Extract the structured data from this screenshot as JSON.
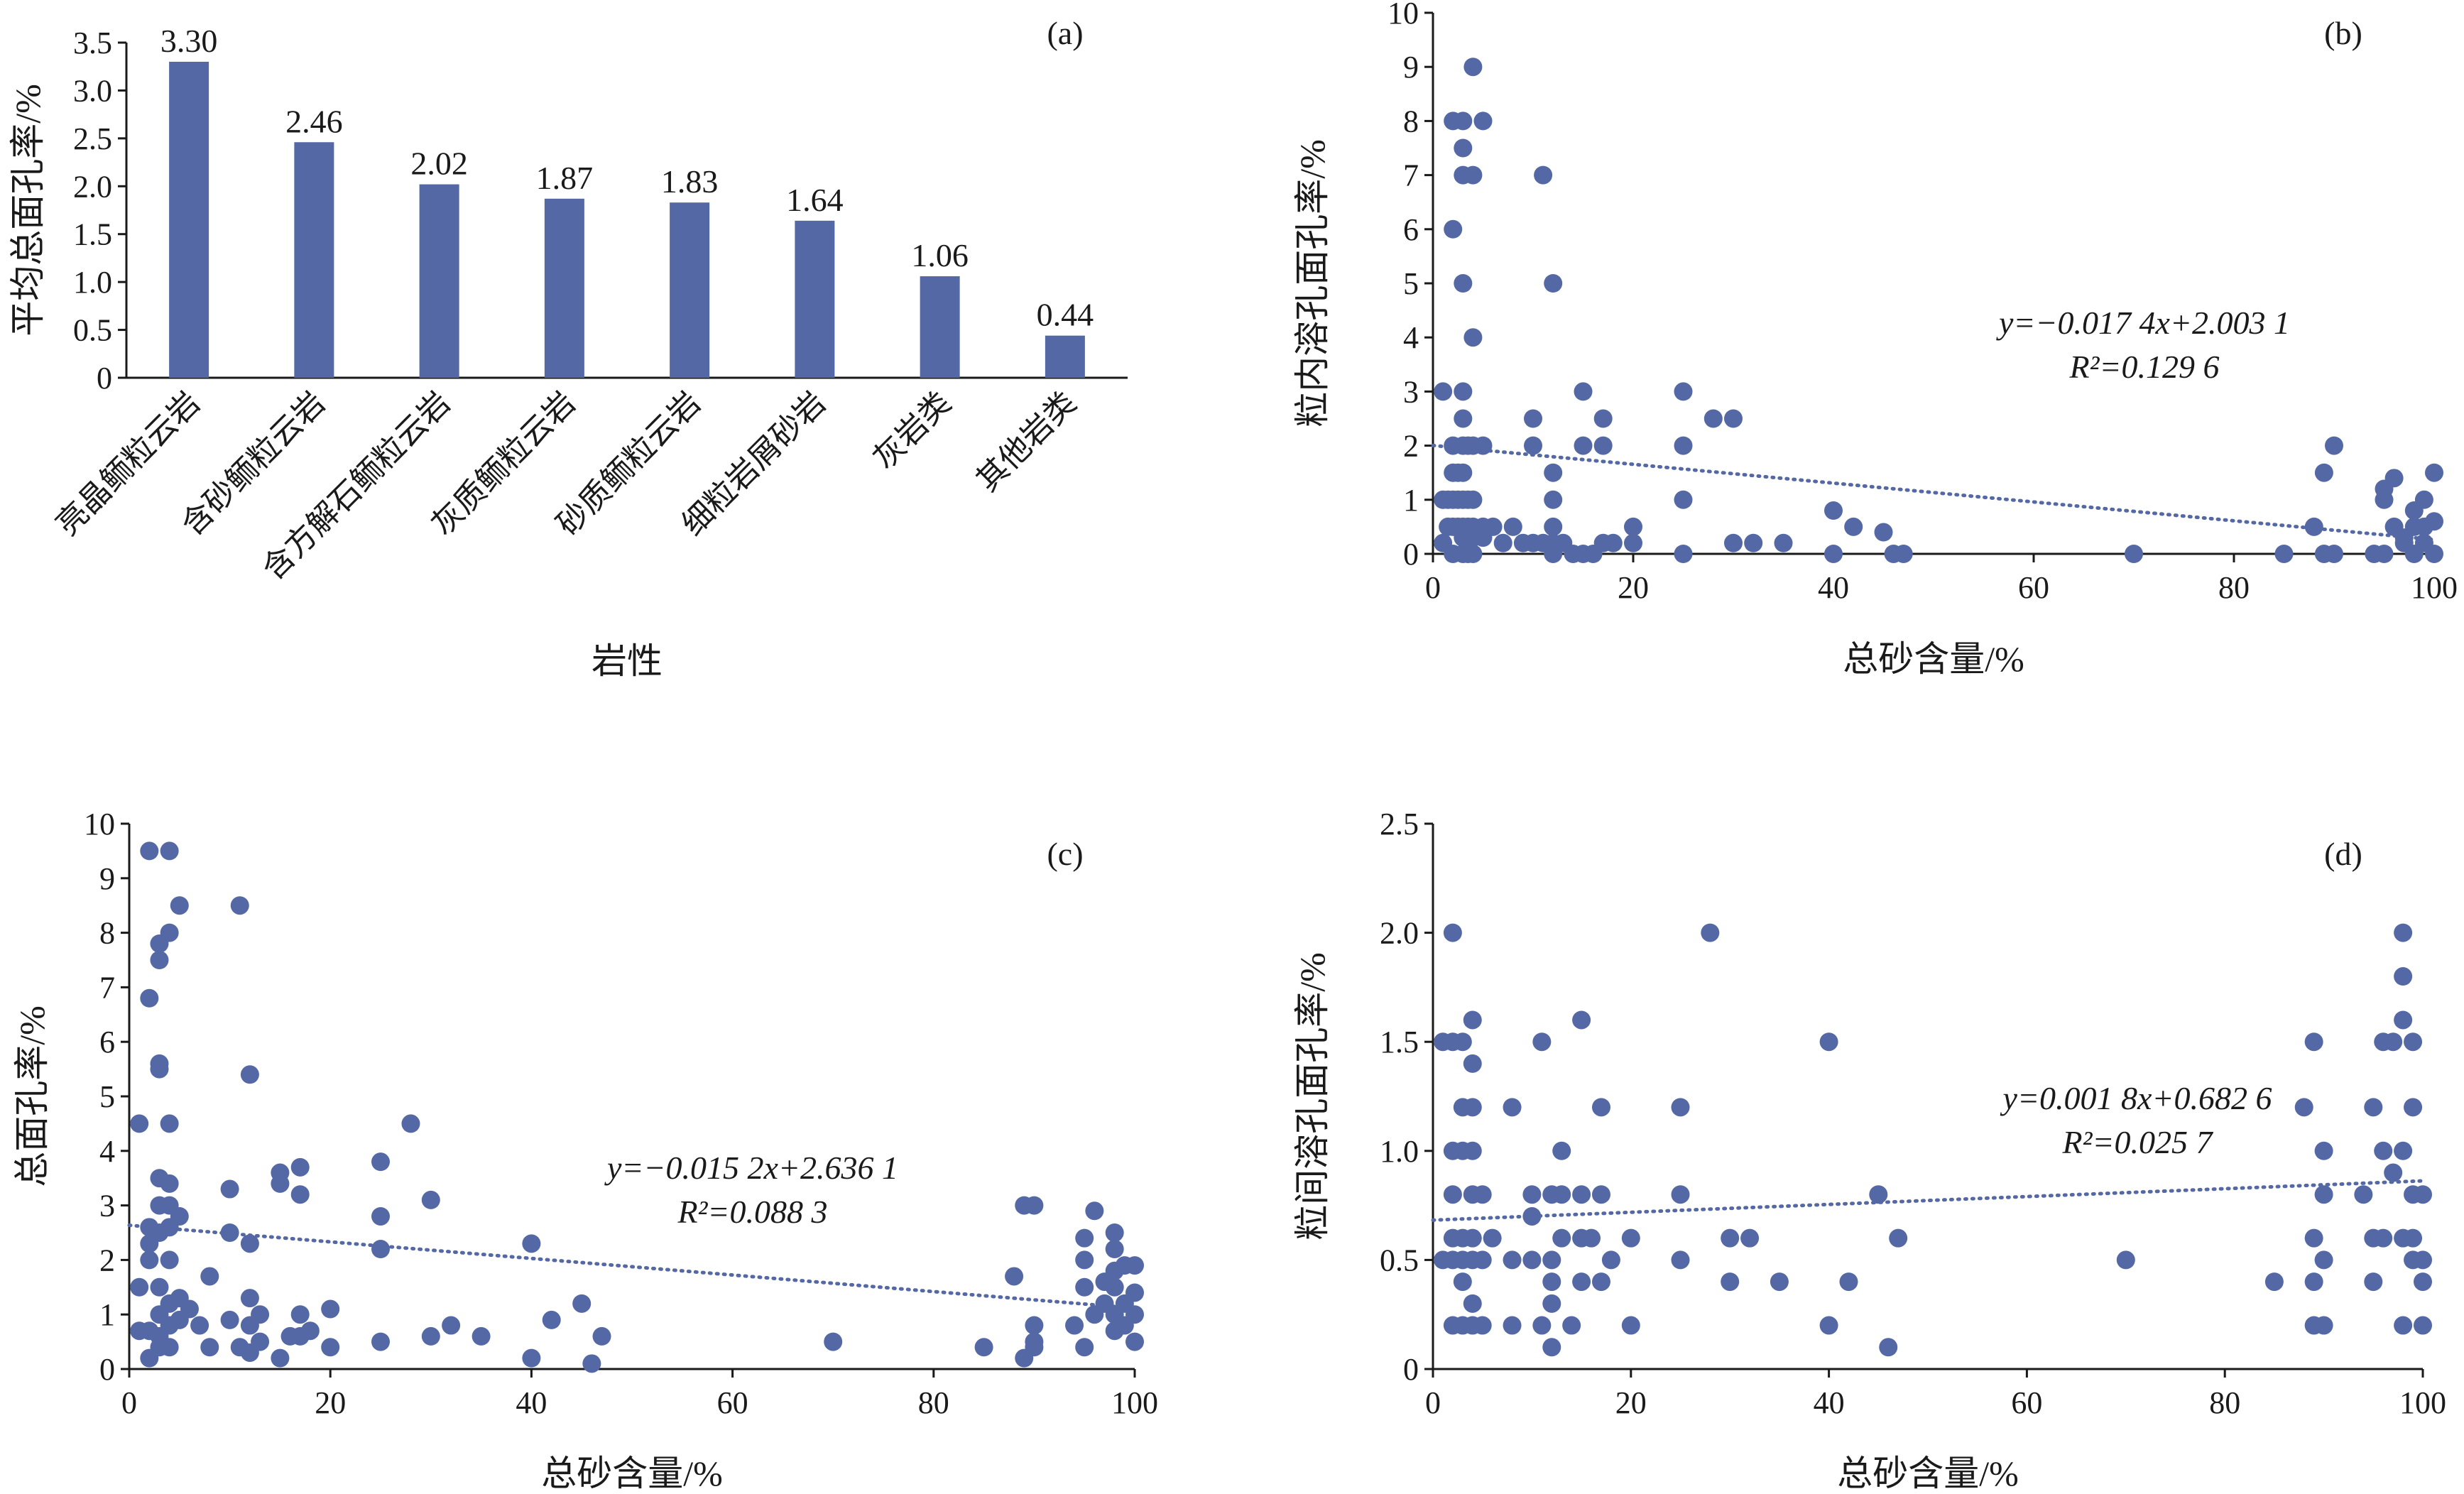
{
  "chart_data": [
    {
      "panel": "(a)",
      "type": "bar",
      "xlabel": "岩性",
      "ylabel": "平均总面孔率/%",
      "ylim": [
        0,
        3.5
      ],
      "yticks": [
        "0",
        "0.5",
        "1.0",
        "1.5",
        "2.0",
        "2.5",
        "3.0",
        "3.5"
      ],
      "categories": [
        "亮晶鲕粒云岩",
        "含砂鲕粒云岩",
        "含方解石鲕粒云岩",
        "灰质鲕粒云岩",
        "砂质鲕粒云岩",
        "细粒岩屑砂岩",
        "灰岩类",
        "其他岩类"
      ],
      "values": [
        3.3,
        2.46,
        2.02,
        1.87,
        1.83,
        1.64,
        1.06,
        0.44
      ],
      "value_labels": [
        "3.30",
        "2.46",
        "2.02",
        "1.87",
        "1.83",
        "1.64",
        "1.06",
        "0.44"
      ],
      "bar_color": "#5468a5"
    },
    {
      "panel": "(b)",
      "type": "scatter",
      "xlabel": "总砂含量/%",
      "ylabel": "粒内溶孔面孔率/%",
      "xlim": [
        0,
        100
      ],
      "ylim": [
        0,
        10
      ],
      "xticks": [
        "0",
        "20",
        "40",
        "60",
        "80",
        "100"
      ],
      "yticks": [
        "0",
        "1",
        "2",
        "3",
        "4",
        "5",
        "6",
        "7",
        "8",
        "9",
        "10"
      ],
      "point_color": "#5468a5",
      "trendline": {
        "slope": -0.0174,
        "intercept": 2.0031,
        "style": "dotted"
      },
      "equation": [
        "y=−0.017 4x+2.003 1",
        "R²=0.129 6"
      ],
      "points": [
        [
          1,
          0.2
        ],
        [
          1,
          1
        ],
        [
          1,
          3
        ],
        [
          1.5,
          0.5
        ],
        [
          1.5,
          1
        ],
        [
          2,
          0
        ],
        [
          2,
          0.5
        ],
        [
          2,
          1
        ],
        [
          2,
          1.5
        ],
        [
          2,
          2
        ],
        [
          2,
          6
        ],
        [
          2,
          8
        ],
        [
          2.5,
          0.5
        ],
        [
          2.5,
          1
        ],
        [
          2.5,
          1.5
        ],
        [
          3,
          0
        ],
        [
          3,
          0.3
        ],
        [
          3,
          0.5
        ],
        [
          3,
          1
        ],
        [
          3,
          1.5
        ],
        [
          3,
          2
        ],
        [
          3,
          2.5
        ],
        [
          3,
          3
        ],
        [
          3,
          5
        ],
        [
          3,
          7
        ],
        [
          3,
          7.5
        ],
        [
          3,
          8
        ],
        [
          3.5,
          0
        ],
        [
          3.5,
          0.5
        ],
        [
          3.5,
          1
        ],
        [
          3.5,
          2
        ],
        [
          4,
          0
        ],
        [
          4,
          0.3
        ],
        [
          4,
          0.5
        ],
        [
          4,
          1
        ],
        [
          4,
          2
        ],
        [
          4,
          4
        ],
        [
          4,
          7
        ],
        [
          4,
          9
        ],
        [
          5,
          0.3
        ],
        [
          5,
          0.5
        ],
        [
          5,
          2
        ],
        [
          5,
          8
        ],
        [
          6,
          0.5
        ],
        [
          7,
          0.2
        ],
        [
          8,
          0.5
        ],
        [
          9,
          0.2
        ],
        [
          10,
          0.2
        ],
        [
          10,
          2
        ],
        [
          10,
          2.5
        ],
        [
          11,
          0.2
        ],
        [
          11,
          7
        ],
        [
          12,
          0
        ],
        [
          12,
          0.2
        ],
        [
          12,
          0.5
        ],
        [
          12,
          1
        ],
        [
          12,
          1.5
        ],
        [
          12,
          5
        ],
        [
          13,
          0.2
        ],
        [
          14,
          0
        ],
        [
          15,
          0
        ],
        [
          15,
          2
        ],
        [
          15,
          3
        ],
        [
          16,
          0
        ],
        [
          17,
          0.2
        ],
        [
          17,
          2
        ],
        [
          17,
          2.5
        ],
        [
          18,
          0.2
        ],
        [
          20,
          0.2
        ],
        [
          20,
          0.5
        ],
        [
          25,
          0
        ],
        [
          25,
          1
        ],
        [
          25,
          2
        ],
        [
          25,
          3
        ],
        [
          28,
          2.5
        ],
        [
          30,
          0.2
        ],
        [
          30,
          2.5
        ],
        [
          32,
          0.2
        ],
        [
          35,
          0.2
        ],
        [
          40,
          0
        ],
        [
          40,
          0.8
        ],
        [
          42,
          0.5
        ],
        [
          45,
          0.4
        ],
        [
          46,
          0
        ],
        [
          47,
          0
        ],
        [
          70,
          0
        ],
        [
          85,
          0
        ],
        [
          88,
          0.5
        ],
        [
          89,
          0
        ],
        [
          89,
          1.5
        ],
        [
          90,
          0
        ],
        [
          90,
          2
        ],
        [
          94,
          0
        ],
        [
          95,
          0
        ],
        [
          95,
          1
        ],
        [
          95,
          1.2
        ],
        [
          96,
          0.5
        ],
        [
          96,
          1.4
        ],
        [
          97,
          0.2
        ],
        [
          97,
          0.3
        ],
        [
          98,
          0
        ],
        [
          98,
          0.5
        ],
        [
          98,
          0.8
        ],
        [
          99,
          0.2
        ],
        [
          99,
          1
        ],
        [
          99,
          0.5
        ],
        [
          100,
          0
        ],
        [
          100,
          0.6
        ],
        [
          100,
          1.5
        ]
      ]
    },
    {
      "panel": "(c)",
      "type": "scatter",
      "xlabel": "总砂含量/%",
      "ylabel": "总面孔率/%",
      "xlim": [
        0,
        100
      ],
      "ylim": [
        0,
        10
      ],
      "xticks": [
        "0",
        "20",
        "40",
        "60",
        "80",
        "100"
      ],
      "yticks": [
        "0",
        "1",
        "2",
        "3",
        "4",
        "5",
        "6",
        "7",
        "8",
        "9",
        "10"
      ],
      "point_color": "#5468a5",
      "trendline": {
        "slope": -0.0152,
        "intercept": 2.6361,
        "style": "dotted"
      },
      "equation": [
        "y=−0.015 2x+2.636 1",
        "R²=0.088 3"
      ],
      "points": [
        [
          1,
          0.7
        ],
        [
          1,
          1.5
        ],
        [
          1,
          4.5
        ],
        [
          2,
          0.2
        ],
        [
          2,
          0.7
        ],
        [
          2,
          2
        ],
        [
          2,
          2.3
        ],
        [
          2,
          2.6
        ],
        [
          2,
          6.8
        ],
        [
          2,
          9.5
        ],
        [
          3,
          0.4
        ],
        [
          3,
          0.6
        ],
        [
          3,
          1
        ],
        [
          3,
          1.5
        ],
        [
          3,
          2.5
        ],
        [
          3,
          3
        ],
        [
          3,
          3.5
        ],
        [
          3,
          5.5
        ],
        [
          3,
          5.6
        ],
        [
          3,
          7.5
        ],
        [
          3,
          7.8
        ],
        [
          4,
          0.4
        ],
        [
          4,
          0.8
        ],
        [
          4,
          1.2
        ],
        [
          4,
          2
        ],
        [
          4,
          2.6
        ],
        [
          4,
          3
        ],
        [
          4,
          3.4
        ],
        [
          4,
          4.5
        ],
        [
          4,
          8
        ],
        [
          4,
          9.5
        ],
        [
          5,
          0.9
        ],
        [
          5,
          1.3
        ],
        [
          5,
          2.8
        ],
        [
          5,
          8.5
        ],
        [
          6,
          1.1
        ],
        [
          7,
          0.8
        ],
        [
          8,
          0.4
        ],
        [
          8,
          1.7
        ],
        [
          10,
          0.9
        ],
        [
          10,
          2.5
        ],
        [
          10,
          3.3
        ],
        [
          11,
          0.4
        ],
        [
          11,
          8.5
        ],
        [
          12,
          0.3
        ],
        [
          12,
          0.8
        ],
        [
          12,
          1.3
        ],
        [
          12,
          2.3
        ],
        [
          12,
          5.4
        ],
        [
          13,
          0.5
        ],
        [
          13,
          1
        ],
        [
          15,
          0.2
        ],
        [
          15,
          3.4
        ],
        [
          15,
          3.6
        ],
        [
          16,
          0.6
        ],
        [
          17,
          0.6
        ],
        [
          17,
          1
        ],
        [
          17,
          3.2
        ],
        [
          17,
          3.7
        ],
        [
          18,
          0.7
        ],
        [
          20,
          0.4
        ],
        [
          20,
          1.1
        ],
        [
          25,
          0.5
        ],
        [
          25,
          2.2
        ],
        [
          25,
          2.8
        ],
        [
          25,
          3.8
        ],
        [
          28,
          4.5
        ],
        [
          30,
          0.6
        ],
        [
          30,
          3.1
        ],
        [
          32,
          0.8
        ],
        [
          35,
          0.6
        ],
        [
          40,
          0.2
        ],
        [
          40,
          2.3
        ],
        [
          42,
          0.9
        ],
        [
          45,
          1.2
        ],
        [
          46,
          0.1
        ],
        [
          47,
          0.6
        ],
        [
          70,
          0.5
        ],
        [
          85,
          0.4
        ],
        [
          88,
          1.7
        ],
        [
          89,
          0.2
        ],
        [
          89,
          3
        ],
        [
          90,
          0.4
        ],
        [
          90,
          0.5
        ],
        [
          90,
          0.8
        ],
        [
          90,
          3
        ],
        [
          94,
          0.8
        ],
        [
          95,
          0.4
        ],
        [
          95,
          1.5
        ],
        [
          95,
          2
        ],
        [
          95,
          2.4
        ],
        [
          96,
          1
        ],
        [
          96,
          2.9
        ],
        [
          97,
          1.2
        ],
        [
          97,
          1.6
        ],
        [
          98,
          0.7
        ],
        [
          98,
          1
        ],
        [
          98,
          1.5
        ],
        [
          98,
          1.8
        ],
        [
          98,
          2.2
        ],
        [
          98,
          2.5
        ],
        [
          99,
          0.8
        ],
        [
          99,
          1.2
        ],
        [
          99,
          1.9
        ],
        [
          100,
          0.5
        ],
        [
          100,
          1
        ],
        [
          100,
          1.4
        ],
        [
          100,
          1.9
        ]
      ]
    },
    {
      "panel": "(d)",
      "type": "scatter",
      "xlabel": "总砂含量/%",
      "ylabel": "粒间溶孔面孔率/%",
      "xlim": [
        0,
        100
      ],
      "ylim": [
        0,
        2.5
      ],
      "xticks": [
        "0",
        "20",
        "40",
        "60",
        "80",
        "100"
      ],
      "yticks": [
        "0",
        "0.5",
        "1.0",
        "1.5",
        "2.0",
        "2.5"
      ],
      "point_color": "#5468a5",
      "trendline": {
        "slope": 0.0018,
        "intercept": 0.6826,
        "style": "dotted"
      },
      "equation": [
        "y=0.001 8x+0.682 6",
        "R²=0.025 7"
      ],
      "points": [
        [
          1,
          0.5
        ],
        [
          1,
          1.5
        ],
        [
          2,
          0.2
        ],
        [
          2,
          0.5
        ],
        [
          2,
          0.6
        ],
        [
          2,
          0.8
        ],
        [
          2,
          1
        ],
        [
          2,
          1.5
        ],
        [
          2,
          2
        ],
        [
          3,
          0.2
        ],
        [
          3,
          0.4
        ],
        [
          3,
          0.5
        ],
        [
          3,
          0.6
        ],
        [
          3,
          1
        ],
        [
          3,
          1.2
        ],
        [
          3,
          1.5
        ],
        [
          4,
          0.2
        ],
        [
          4,
          0.3
        ],
        [
          4,
          0.5
        ],
        [
          4,
          0.6
        ],
        [
          4,
          0.8
        ],
        [
          4,
          1
        ],
        [
          4,
          1.2
        ],
        [
          4,
          1.4
        ],
        [
          4,
          1.6
        ],
        [
          5,
          0.2
        ],
        [
          5,
          0.5
        ],
        [
          5,
          0.8
        ],
        [
          6,
          0.6
        ],
        [
          8,
          0.2
        ],
        [
          8,
          0.5
        ],
        [
          8,
          1.2
        ],
        [
          10,
          0.5
        ],
        [
          10,
          0.7
        ],
        [
          10,
          0.8
        ],
        [
          11,
          0.2
        ],
        [
          11,
          1.5
        ],
        [
          12,
          0.1
        ],
        [
          12,
          0.3
        ],
        [
          12,
          0.4
        ],
        [
          12,
          0.5
        ],
        [
          12,
          0.8
        ],
        [
          13,
          0.6
        ],
        [
          13,
          0.8
        ],
        [
          13,
          1
        ],
        [
          14,
          0.2
        ],
        [
          15,
          0.4
        ],
        [
          15,
          0.6
        ],
        [
          15,
          0.8
        ],
        [
          15,
          1.6
        ],
        [
          16,
          0.6
        ],
        [
          17,
          0.4
        ],
        [
          17,
          0.8
        ],
        [
          17,
          1.2
        ],
        [
          18,
          0.5
        ],
        [
          20,
          0.2
        ],
        [
          20,
          0.6
        ],
        [
          25,
          0.5
        ],
        [
          25,
          0.8
        ],
        [
          25,
          1.2
        ],
        [
          28,
          2
        ],
        [
          30,
          0.4
        ],
        [
          30,
          0.6
        ],
        [
          32,
          0.6
        ],
        [
          35,
          0.4
        ],
        [
          40,
          0.2
        ],
        [
          40,
          1.5
        ],
        [
          42,
          0.4
        ],
        [
          45,
          0.8
        ],
        [
          46,
          0.1
        ],
        [
          47,
          0.6
        ],
        [
          70,
          0.5
        ],
        [
          85,
          0.4
        ],
        [
          88,
          1.2
        ],
        [
          89,
          0.2
        ],
        [
          89,
          0.4
        ],
        [
          89,
          0.6
        ],
        [
          89,
          1.5
        ],
        [
          90,
          0.2
        ],
        [
          90,
          0.5
        ],
        [
          90,
          0.8
        ],
        [
          90,
          1
        ],
        [
          94,
          0.8
        ],
        [
          95,
          0.4
        ],
        [
          95,
          0.6
        ],
        [
          95,
          1.2
        ],
        [
          96,
          0.6
        ],
        [
          96,
          1
        ],
        [
          96,
          1.5
        ],
        [
          97,
          0.9
        ],
        [
          97,
          1.5
        ],
        [
          98,
          0.2
        ],
        [
          98,
          0.6
        ],
        [
          98,
          1
        ],
        [
          98,
          1.6
        ],
        [
          98,
          1.8
        ],
        [
          98,
          2
        ],
        [
          99,
          0.5
        ],
        [
          99,
          0.6
        ],
        [
          99,
          0.8
        ],
        [
          99,
          1.2
        ],
        [
          99,
          1.5
        ],
        [
          100,
          0.2
        ],
        [
          100,
          0.4
        ],
        [
          100,
          0.5
        ],
        [
          100,
          0.8
        ]
      ]
    }
  ]
}
